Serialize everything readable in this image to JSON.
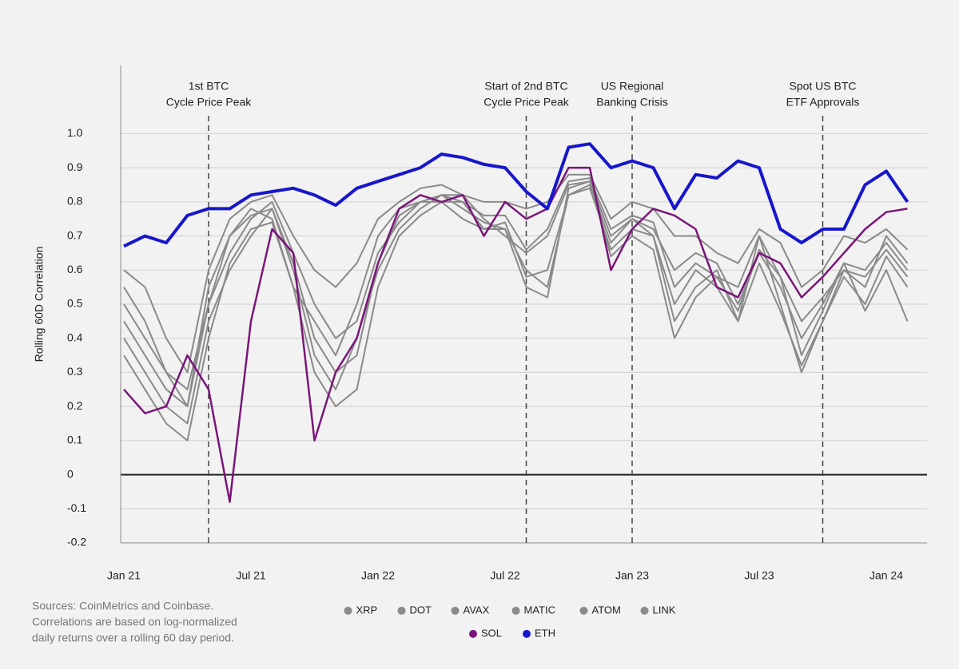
{
  "chart_data": {
    "type": "line",
    "y_label": "Rolling 60D Correlation",
    "categories": [
      "Jan 21",
      null,
      null,
      null,
      null,
      null,
      "Jul 21",
      null,
      null,
      null,
      null,
      null,
      "Jan 22",
      null,
      null,
      null,
      null,
      null,
      "Jul 22",
      null,
      null,
      null,
      null,
      null,
      "Jan 23",
      null,
      null,
      null,
      null,
      null,
      "Jul 23",
      null,
      null,
      null,
      null,
      null,
      "Jan 24",
      null
    ],
    "ylim": [
      -0.2,
      1.2
    ],
    "yticks": [
      -0.2,
      -0.1,
      0,
      0.1,
      0.2,
      0.3,
      0.4,
      0.5,
      0.6,
      0.7,
      0.8,
      0.9,
      {
        "value": 1,
        "label": "1.0"
      }
    ],
    "grid": true,
    "series": [
      {
        "name": "XRP",
        "color": "#8a8a8a",
        "values": [
          0.45,
          0.35,
          0.25,
          0.2,
          0.55,
          0.7,
          0.78,
          0.75,
          0.55,
          0.45,
          0.35,
          0.5,
          0.7,
          0.78,
          0.8,
          0.8,
          0.75,
          0.72,
          0.72,
          0.6,
          0.55,
          0.82,
          0.85,
          0.68,
          0.75,
          0.7,
          0.45,
          0.55,
          0.6,
          0.45,
          0.7,
          0.5,
          0.3,
          0.45,
          0.6,
          0.55,
          0.7,
          0.62
        ]
      },
      {
        "name": "DOT",
        "color": "#8a8a8a",
        "values": [
          0.6,
          0.55,
          0.4,
          0.3,
          0.6,
          0.75,
          0.8,
          0.82,
          0.7,
          0.6,
          0.55,
          0.62,
          0.75,
          0.8,
          0.84,
          0.85,
          0.82,
          0.8,
          0.8,
          0.78,
          0.8,
          0.88,
          0.88,
          0.75,
          0.8,
          0.78,
          0.7,
          0.7,
          0.65,
          0.62,
          0.72,
          0.68,
          0.55,
          0.6,
          0.7,
          0.68,
          0.72,
          0.66
        ]
      },
      {
        "name": "AVAX",
        "color": "#8a8a8a",
        "values": [
          0.4,
          0.3,
          0.2,
          0.15,
          0.45,
          0.6,
          0.7,
          0.78,
          0.6,
          0.35,
          0.25,
          0.4,
          0.6,
          0.72,
          0.78,
          0.82,
          0.82,
          0.75,
          0.7,
          0.65,
          0.7,
          0.85,
          0.86,
          0.7,
          0.75,
          0.72,
          0.6,
          0.65,
          0.62,
          0.5,
          0.65,
          0.55,
          0.4,
          0.5,
          0.62,
          0.6,
          0.68,
          0.6
        ]
      },
      {
        "name": "MATIC",
        "color": "#8a8a8a",
        "values": [
          0.35,
          0.25,
          0.15,
          0.1,
          0.4,
          0.62,
          0.72,
          0.74,
          0.55,
          0.3,
          0.2,
          0.25,
          0.55,
          0.7,
          0.76,
          0.8,
          0.8,
          0.72,
          0.74,
          0.58,
          0.6,
          0.82,
          0.84,
          0.66,
          0.72,
          0.7,
          0.5,
          0.6,
          0.55,
          0.45,
          0.62,
          0.48,
          0.32,
          0.45,
          0.58,
          0.5,
          0.64,
          0.55
        ]
      },
      {
        "name": "ATOM",
        "color": "#8a8a8a",
        "values": [
          0.5,
          0.4,
          0.3,
          0.25,
          0.5,
          0.65,
          0.75,
          0.8,
          0.65,
          0.5,
          0.4,
          0.45,
          0.65,
          0.74,
          0.8,
          0.82,
          0.8,
          0.76,
          0.76,
          0.66,
          0.72,
          0.86,
          0.87,
          0.72,
          0.76,
          0.74,
          0.55,
          0.62,
          0.58,
          0.48,
          0.66,
          0.58,
          0.45,
          0.52,
          0.6,
          0.58,
          0.66,
          0.58
        ]
      },
      {
        "name": "LINK",
        "color": "#8a8a8a",
        "values": [
          0.55,
          0.45,
          0.3,
          0.2,
          0.5,
          0.7,
          0.76,
          0.78,
          0.62,
          0.4,
          0.3,
          0.35,
          0.62,
          0.76,
          0.8,
          0.82,
          0.78,
          0.74,
          0.72,
          0.55,
          0.52,
          0.84,
          0.86,
          0.64,
          0.7,
          0.66,
          0.4,
          0.52,
          0.58,
          0.55,
          0.7,
          0.58,
          0.35,
          0.48,
          0.62,
          0.48,
          0.6,
          0.45
        ]
      },
      {
        "name": "SOL",
        "color": "#7a167a",
        "values": [
          0.25,
          0.18,
          0.2,
          0.35,
          0.25,
          -0.08,
          0.45,
          0.72,
          0.65,
          0.1,
          0.3,
          0.4,
          0.62,
          0.78,
          0.82,
          0.8,
          0.82,
          0.7,
          0.8,
          0.75,
          0.78,
          0.9,
          0.9,
          0.6,
          0.72,
          0.78,
          0.76,
          0.72,
          0.55,
          0.52,
          0.65,
          0.62,
          0.52,
          0.58,
          0.65,
          0.72,
          0.77,
          0.78
        ]
      },
      {
        "name": "ETH",
        "color": "#1616cc",
        "values": [
          0.67,
          0.7,
          0.68,
          0.76,
          0.78,
          0.78,
          0.82,
          0.83,
          0.84,
          0.82,
          0.79,
          0.84,
          0.86,
          0.88,
          0.9,
          0.94,
          0.93,
          0.91,
          0.9,
          0.83,
          0.78,
          0.96,
          0.97,
          0.9,
          0.92,
          0.9,
          0.78,
          0.88,
          0.87,
          0.92,
          0.9,
          0.72,
          0.68,
          0.72,
          0.72,
          0.85,
          0.89,
          0.8
        ]
      }
    ],
    "annotations": [
      {
        "lines": [
          "1st BTC",
          "Cycle Price Peak"
        ],
        "category_index": 4
      },
      {
        "lines": [
          "Start of 2nd BTC",
          "Cycle Price Peak"
        ],
        "category_index": 19
      },
      {
        "lines": [
          "US Regional",
          "Banking Crisis"
        ],
        "category_index": 24
      },
      {
        "lines": [
          "Spot US BTC",
          "ETF Approvals"
        ],
        "category_index": 33
      }
    ],
    "source_lines": [
      "Sources: CoinMetrics and Coinbase.",
      "Correlations are based on log-normalized",
      "daily returns over a rolling 60 day period."
    ]
  }
}
